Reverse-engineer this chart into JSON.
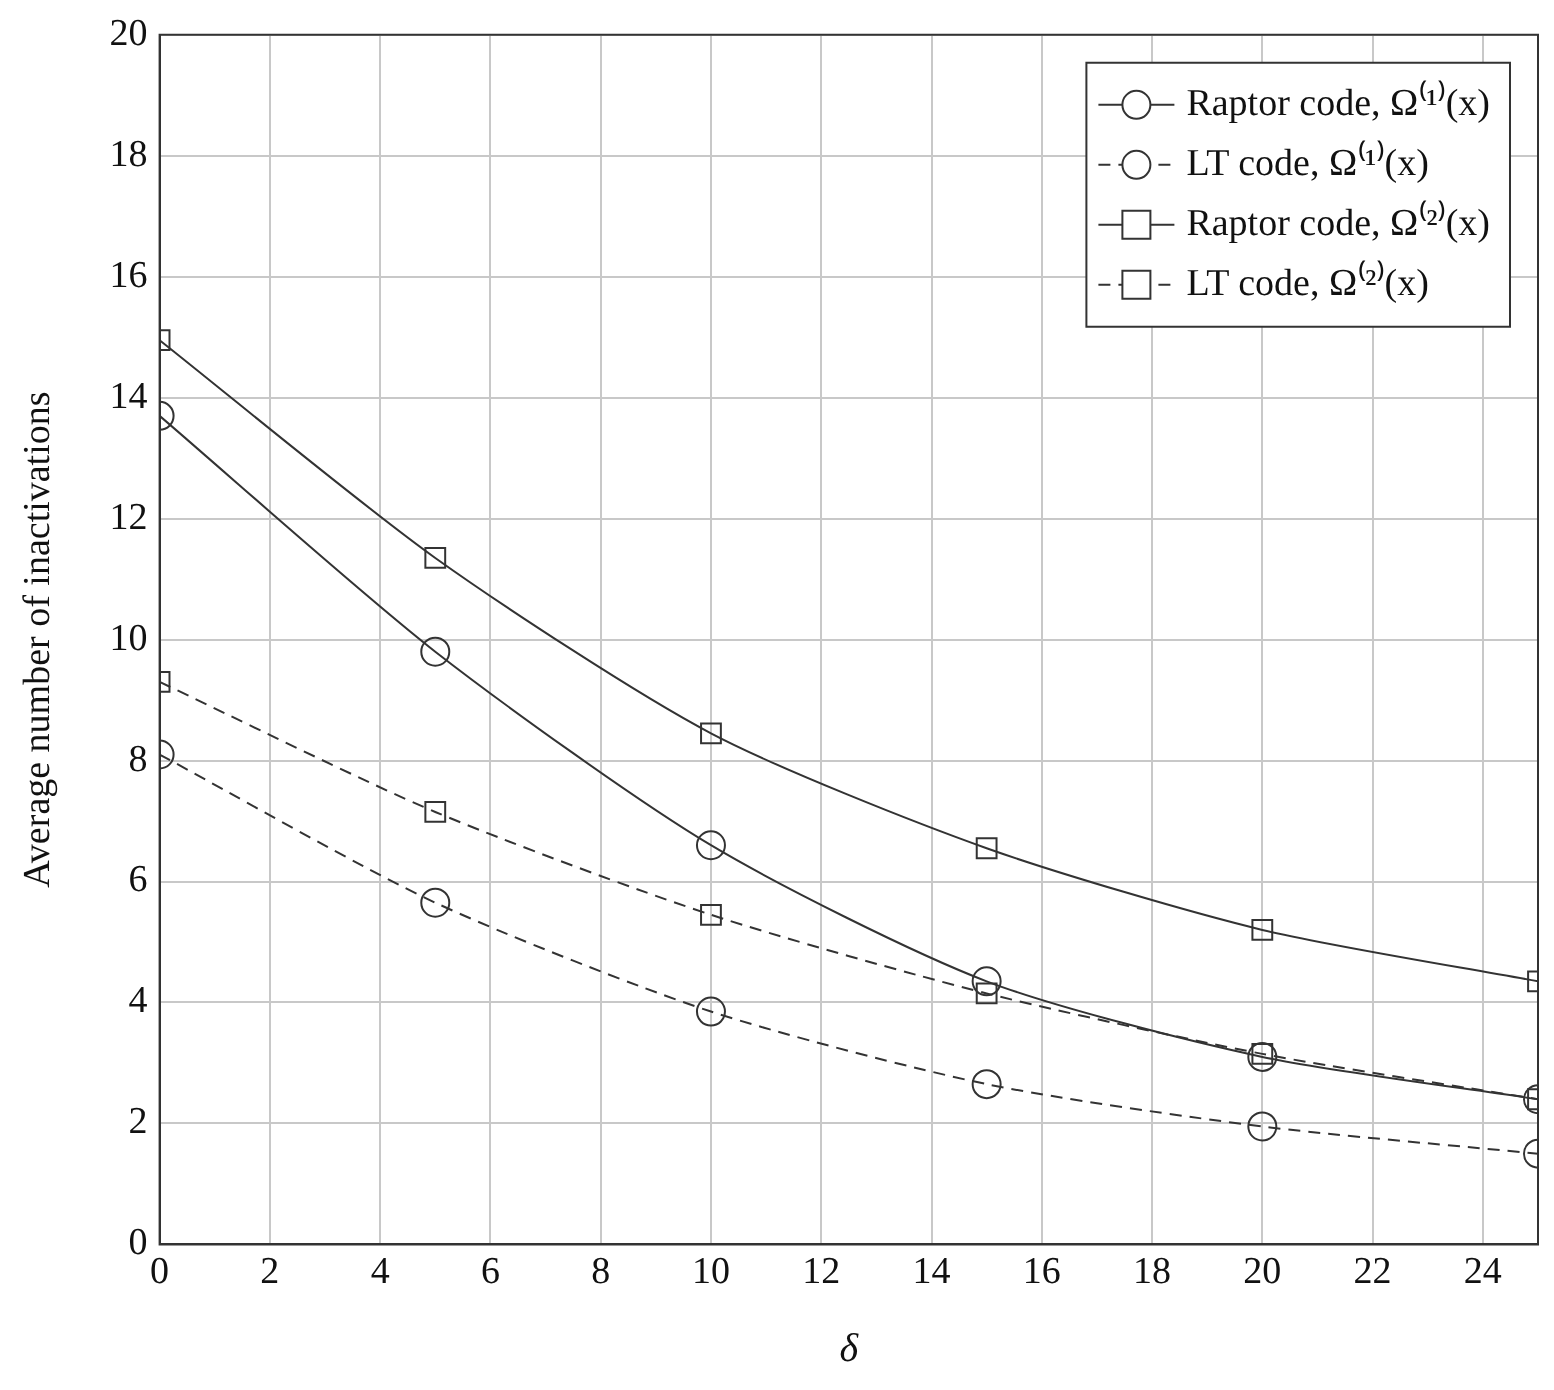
{
  "chart_data": {
    "type": "line",
    "xlabel": "δ",
    "ylabel": "Average number of inactivations",
    "x": [
      0,
      5,
      10,
      15,
      20,
      25
    ],
    "series": [
      {
        "name": "Raptor code, Ω⁽¹⁾(x)",
        "color": "#333333",
        "marker": "circle",
        "line_style": "solid",
        "values": [
          13.7,
          9.8,
          6.6,
          4.35,
          3.1,
          2.4
        ]
      },
      {
        "name": "LT code, Ω⁽¹⁾(x)",
        "color": "#333333",
        "marker": "circle",
        "line_style": "dashed",
        "values": [
          8.1,
          5.65,
          3.85,
          2.65,
          1.95,
          1.5
        ]
      },
      {
        "name": "Raptor code, Ω⁽²⁾(x)",
        "color": "#333333",
        "marker": "square",
        "line_style": "solid",
        "values": [
          14.95,
          11.35,
          8.45,
          6.55,
          5.2,
          4.35
        ]
      },
      {
        "name": "LT code, Ω⁽²⁾(x)",
        "color": "#333333",
        "marker": "square",
        "line_style": "dashed",
        "values": [
          9.3,
          7.15,
          5.45,
          4.15,
          3.15,
          2.4
        ]
      }
    ],
    "xlim": [
      0,
      25
    ],
    "xticks": [
      0,
      2,
      4,
      6,
      8,
      10,
      12,
      14,
      16,
      18,
      20,
      22,
      24
    ],
    "ylim": [
      0,
      20
    ],
    "yticks": [
      0,
      2,
      4,
      6,
      8,
      10,
      12,
      14,
      16,
      18,
      20
    ],
    "grid": true,
    "legend": "top right"
  }
}
